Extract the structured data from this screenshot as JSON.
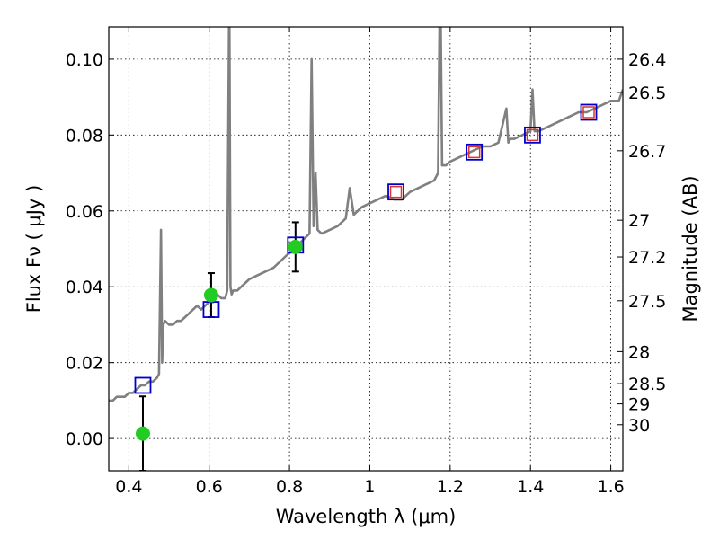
{
  "chart_data": {
    "type": "scatter",
    "title": "",
    "xlabel": "Wavelength  λ (μm)",
    "ylabel": "Flux  Fν ( μJy )",
    "y2label": "Magnitude (AB)",
    "xlim": [
      0.35,
      1.63
    ],
    "ylim": [
      -0.0085,
      0.1085
    ],
    "grid": true,
    "x_ticks": [
      0.4,
      0.6,
      0.8,
      1.0,
      1.2,
      1.4,
      1.6
    ],
    "x_tick_labels": [
      "0.4",
      "0.6",
      "0.8",
      "1",
      "1.2",
      "1.4",
      "1.6"
    ],
    "y_ticks": [
      0.0,
      0.02,
      0.04,
      0.06,
      0.08,
      0.1
    ],
    "y_tick_labels": [
      "0.00",
      "0.02",
      "0.04",
      "0.06",
      "0.08",
      "0.10"
    ],
    "y2_ticks": [
      26.4,
      26.5,
      26.7,
      27,
      27.2,
      27.5,
      28,
      28.5,
      29,
      30
    ],
    "y2_tick_labels": [
      "26.4",
      "26.5",
      "26.7",
      "27",
      "27.2",
      "27.5",
      "28",
      "28.5",
      "29",
      "30"
    ],
    "colors": {
      "spectrum": "#808080",
      "spectrum_blue": "#3333cc",
      "model_box": "#0000cc",
      "model_box_red": "#dd3333",
      "observed": "#22cc22",
      "errorbar": "#000000"
    },
    "series": [
      {
        "name": "",
        "kind": "line",
        "x": [
          0.35,
          0.36,
          0.37,
          0.38,
          0.39,
          0.4,
          0.41,
          0.42,
          0.43,
          0.44,
          0.45,
          0.46,
          0.47,
          0.475,
          0.48,
          0.483,
          0.486,
          0.49,
          0.5,
          0.51,
          0.52,
          0.53,
          0.54,
          0.55,
          0.56,
          0.57,
          0.58,
          0.59,
          0.6,
          0.61,
          0.62,
          0.63,
          0.64,
          0.645,
          0.65,
          0.653,
          0.656,
          0.66,
          0.67,
          0.68,
          0.69,
          0.7,
          0.72,
          0.74,
          0.76,
          0.78,
          0.8,
          0.82,
          0.83,
          0.84,
          0.85,
          0.855,
          0.86,
          0.865,
          0.87,
          0.88,
          0.9,
          0.92,
          0.94,
          0.95,
          0.96,
          0.98,
          1.0,
          1.02,
          1.04,
          1.06,
          1.08,
          1.1,
          1.12,
          1.14,
          1.16,
          1.17,
          1.175,
          1.18,
          1.185,
          1.19,
          1.2,
          1.22,
          1.24,
          1.26,
          1.28,
          1.3,
          1.32,
          1.34,
          1.345,
          1.35,
          1.36,
          1.38,
          1.4,
          1.405,
          1.41,
          1.42,
          1.44,
          1.46,
          1.48,
          1.5,
          1.52,
          1.54,
          1.56,
          1.58,
          1.6,
          1.62,
          1.63
        ],
        "y": [
          0.01,
          0.01,
          0.011,
          0.011,
          0.011,
          0.012,
          0.012,
          0.013,
          0.014,
          0.014,
          0.015,
          0.015,
          0.016,
          0.017,
          0.055,
          0.02,
          0.03,
          0.031,
          0.03,
          0.03,
          0.031,
          0.031,
          0.032,
          0.033,
          0.034,
          0.035,
          0.034,
          0.035,
          0.036,
          0.036,
          0.038,
          0.037,
          0.037,
          0.039,
          0.12,
          0.04,
          0.038,
          0.039,
          0.039,
          0.04,
          0.041,
          0.042,
          0.043,
          0.044,
          0.045,
          0.047,
          0.049,
          0.05,
          0.052,
          0.053,
          0.054,
          0.1,
          0.056,
          0.07,
          0.055,
          0.054,
          0.055,
          0.056,
          0.058,
          0.066,
          0.059,
          0.061,
          0.062,
          0.063,
          0.064,
          0.063,
          0.063,
          0.065,
          0.066,
          0.067,
          0.068,
          0.07,
          0.125,
          0.072,
          0.072,
          0.072,
          0.073,
          0.074,
          0.075,
          0.076,
          0.077,
          0.077,
          0.078,
          0.087,
          0.078,
          0.079,
          0.079,
          0.08,
          0.081,
          0.092,
          0.081,
          0.081,
          0.082,
          0.083,
          0.084,
          0.085,
          0.086,
          0.086,
          0.087,
          0.088,
          0.089,
          0.089,
          0.092
        ]
      },
      {
        "name": "",
        "kind": "model-boxes",
        "x": [
          0.435,
          0.605,
          0.815,
          1.065,
          1.26,
          1.405,
          1.545
        ],
        "y": [
          0.014,
          0.034,
          0.051,
          0.065,
          0.0755,
          0.08,
          0.086
        ],
        "inner_red": [
          false,
          false,
          false,
          true,
          true,
          true,
          true
        ]
      },
      {
        "name": "",
        "kind": "observed",
        "x": [
          0.435,
          0.605,
          0.815
        ],
        "y": [
          0.0013,
          0.0378,
          0.0505
        ],
        "yerr_low": [
          0.0098,
          0.0058,
          0.0065
        ],
        "yerr_high": [
          0.0098,
          0.0058,
          0.0065
        ]
      }
    ]
  }
}
